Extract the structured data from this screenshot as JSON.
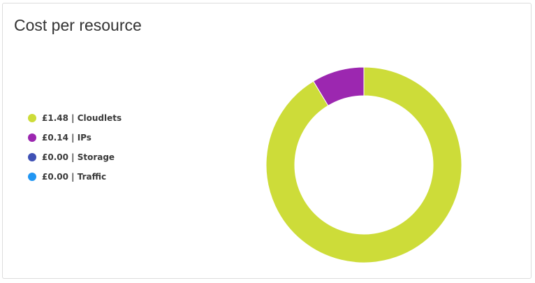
{
  "card": {
    "title": "Cost per resource"
  },
  "chart_data": {
    "type": "pie",
    "style": "donut",
    "legend_position": "left",
    "categories": [
      "Cloudlets",
      "IPs",
      "Storage",
      "Traffic"
    ],
    "values": [
      1.48,
      0.14,
      0.0,
      0.0
    ],
    "colors": [
      "#cddc39",
      "#9c27b0",
      "#3f51b5",
      "#2196f3"
    ],
    "legend": [
      {
        "text": "£1.48 | Cloudlets",
        "color": "#cddc39"
      },
      {
        "text": "£0.14 | IPs",
        "color": "#9c27b0"
      },
      {
        "text": "£0.00 | Storage",
        "color": "#3f51b5"
      },
      {
        "text": "£0.00 | Traffic",
        "color": "#2196f3"
      }
    ]
  }
}
